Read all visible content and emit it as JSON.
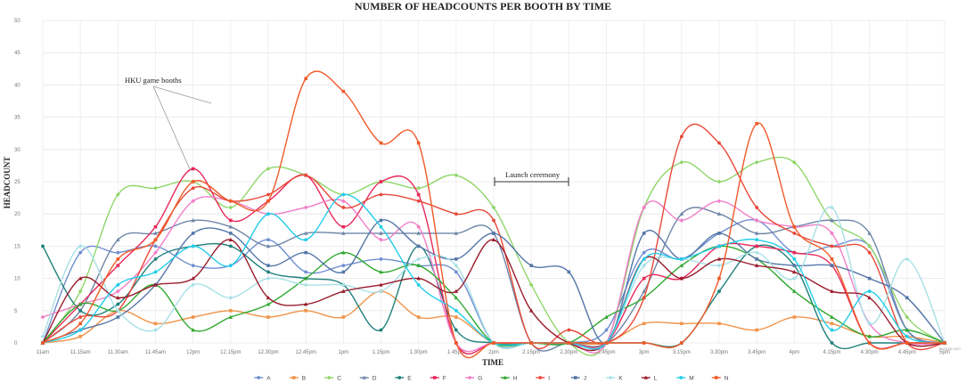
{
  "chart_data": {
    "type": "line",
    "title": "NUMBER OF HEADCOUNTS PER BOOTH BY TIME",
    "xlabel": "TIME",
    "ylabel": "HEADCOUNT",
    "ylim": [
      0,
      50
    ],
    "yticks": [
      0,
      5,
      10,
      15,
      20,
      25,
      30,
      35,
      40,
      45,
      50
    ],
    "grid": true,
    "legend_position": "bottom",
    "credit": "livegap.com",
    "categories": [
      "11am",
      "11.15am",
      "11.30am",
      "11.45am",
      "12pm",
      "12.15pm",
      "12.30pm",
      "12.45pm",
      "1pm",
      "1.15pm",
      "1.30pm",
      "1.45pm",
      "2pm",
      "2.15pm",
      "2.30pm",
      "2.45pm",
      "3pm",
      "3.15pm",
      "3.30pm",
      "3.45pm",
      "4pm",
      "4.15pm",
      "4.30pm",
      "4.45pm",
      "5pm"
    ],
    "series": [
      {
        "name": "A",
        "color": "#6f8fd1",
        "values": [
          0,
          14,
          14,
          15,
          12,
          12,
          16,
          11,
          12,
          13,
          12,
          11,
          0,
          0,
          0,
          2,
          14,
          13,
          17,
          19,
          14,
          15,
          15,
          2,
          0
        ]
      },
      {
        "name": "B",
        "color": "#f0944a",
        "values": [
          0,
          1,
          5,
          3,
          4,
          5,
          4,
          5,
          4,
          8,
          4,
          4,
          0,
          0,
          0,
          0,
          3,
          3,
          3,
          2,
          4,
          3,
          1,
          1,
          0
        ]
      },
      {
        "name": "C",
        "color": "#8fd66a",
        "values": [
          0,
          8,
          23,
          24,
          25,
          21,
          27,
          26,
          23,
          25,
          24,
          26,
          21,
          9,
          0,
          0,
          21,
          28,
          25,
          28,
          28,
          19,
          15,
          4,
          0
        ]
      },
      {
        "name": "D",
        "color": "#6f86a8",
        "values": [
          0,
          5,
          16,
          17,
          19,
          18,
          15,
          17,
          17,
          17,
          17,
          17,
          17,
          0,
          0,
          0,
          8,
          20,
          20,
          17,
          18,
          19,
          17,
          2,
          0
        ]
      },
      {
        "name": "E",
        "color": "#1f7f7a",
        "values": [
          15,
          5,
          6,
          13,
          15,
          15,
          11,
          10,
          9,
          2,
          15,
          2,
          0,
          0,
          0,
          0,
          0,
          0,
          8,
          15,
          12,
          0,
          0,
          0,
          0
        ]
      },
      {
        "name": "F",
        "color": "#e8285a",
        "values": [
          0,
          6,
          12,
          18,
          27,
          19,
          22,
          26,
          18,
          25,
          23,
          0,
          0,
          0,
          0,
          0,
          10,
          10,
          15,
          15,
          14,
          12,
          0,
          0,
          0
        ]
      },
      {
        "name": "G",
        "color": "#f07ec8",
        "values": [
          4,
          6,
          8,
          14,
          22,
          22,
          20,
          21,
          22,
          16,
          18,
          0,
          0,
          0,
          0,
          0,
          21,
          19,
          22,
          19,
          18,
          17,
          3,
          0,
          0
        ]
      },
      {
        "name": "H",
        "color": "#2fa82f",
        "values": [
          0,
          6,
          5,
          9,
          2,
          4,
          6,
          10,
          14,
          11,
          12,
          7,
          0,
          0,
          0,
          4,
          7,
          12,
          15,
          13,
          8,
          4,
          1,
          2,
          0
        ]
      },
      {
        "name": "I",
        "color": "#e84a3a",
        "values": [
          0,
          4,
          5,
          16,
          24,
          22,
          23,
          26,
          21,
          23,
          22,
          20,
          19,
          0,
          2,
          0,
          7,
          32,
          31,
          21,
          17,
          15,
          14,
          0,
          0
        ]
      },
      {
        "name": "J",
        "color": "#5577a8",
        "values": [
          0,
          2,
          4,
          9,
          17,
          17,
          12,
          14,
          11,
          19,
          15,
          13,
          17,
          12,
          11,
          0,
          17,
          13,
          17,
          13,
          12,
          12,
          10,
          7,
          0
        ]
      },
      {
        "name": "K",
        "color": "#a8e0e6",
        "values": [
          1,
          15,
          5,
          2,
          9,
          7,
          10,
          9,
          9,
          8,
          13,
          12,
          0,
          0,
          0,
          0,
          12,
          13,
          12,
          14,
          10,
          21,
          3,
          13,
          0
        ]
      },
      {
        "name": "L",
        "color": "#9a1c2c",
        "values": [
          0,
          10,
          7,
          9,
          10,
          16,
          7,
          6,
          8,
          9,
          10,
          8,
          16,
          5,
          0,
          0,
          13,
          10,
          13,
          12,
          11,
          8,
          7,
          0,
          0
        ]
      },
      {
        "name": "M",
        "color": "#22cde8",
        "values": [
          0,
          2,
          9,
          11,
          15,
          12,
          20,
          16,
          23,
          18,
          9,
          5,
          0,
          0,
          0,
          0,
          13,
          13,
          15,
          16,
          13,
          2,
          8,
          1,
          0
        ]
      },
      {
        "name": "N",
        "color": "#f05a28",
        "values": [
          0,
          3,
          13,
          16,
          25,
          22,
          22,
          41,
          39,
          31,
          31,
          0,
          0,
          0,
          0,
          0,
          0,
          0,
          10,
          34,
          18,
          13,
          0,
          0,
          0
        ]
      }
    ],
    "annotations": [
      {
        "label": "HKU game booths"
      },
      {
        "label": "Launch ceremony"
      }
    ]
  }
}
